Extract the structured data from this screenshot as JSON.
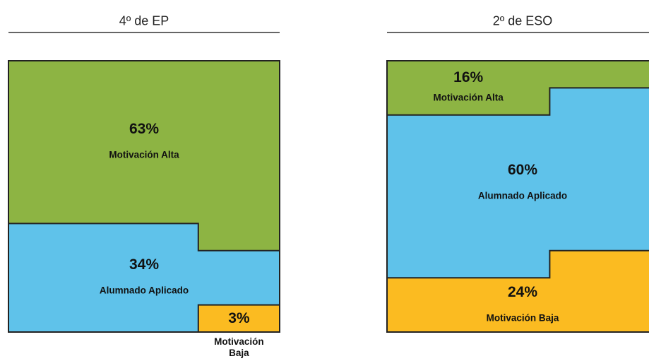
{
  "chart_data": [
    {
      "type": "waffle",
      "title": "4º de EP",
      "categories": [
        "Motivación Alta",
        "Alumnado Aplicado",
        "Motivación Baja"
      ],
      "values": [
        63,
        34,
        3
      ],
      "value_labels": [
        "63%",
        "34%",
        "3%"
      ],
      "colors": [
        "#8db443",
        "#5fc2ea",
        "#fbbb21"
      ]
    },
    {
      "type": "waffle",
      "title": "2º de ESO",
      "categories": [
        "Motivación Alta",
        "Alumnado Aplicado",
        "Motivación Baja"
      ],
      "values": [
        16,
        60,
        24
      ],
      "value_labels": [
        "16%",
        "60%",
        "24%"
      ],
      "colors": [
        "#8db443",
        "#5fc2ea",
        "#fbbb21"
      ]
    }
  ]
}
